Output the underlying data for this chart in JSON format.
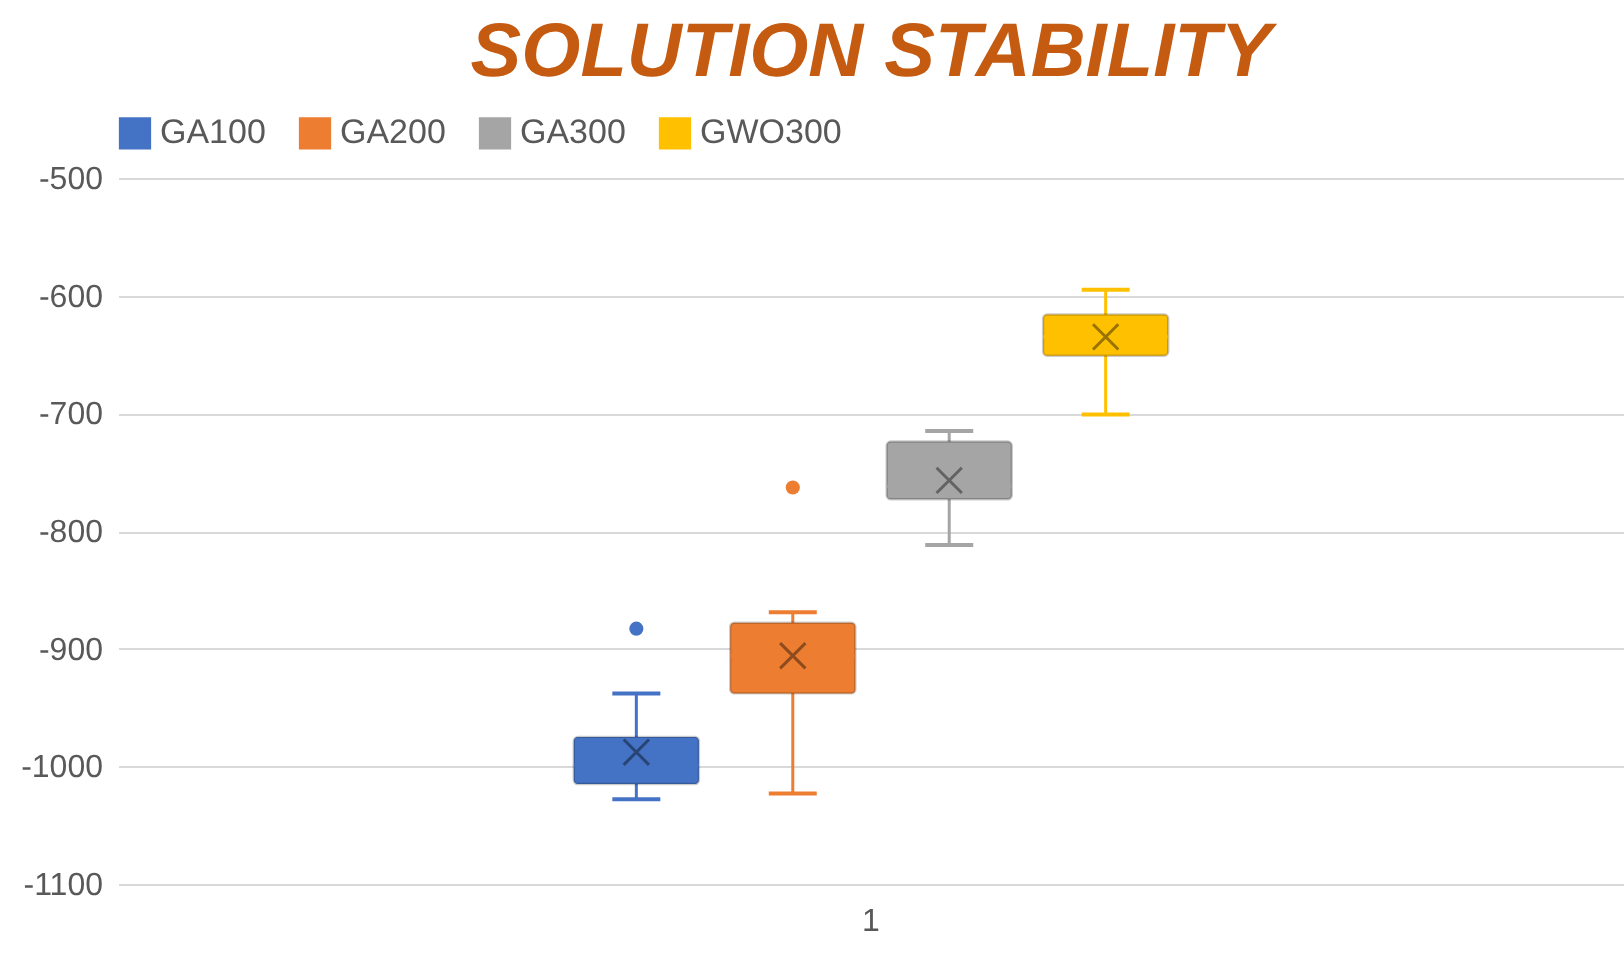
{
  "chart_data": {
    "type": "box",
    "title": "SOLUTION STABILITY",
    "categories": [
      "1"
    ],
    "series": [
      {
        "name": "GA100",
        "color": "#4472c4",
        "boxes": [
          {
            "low": -1028,
            "q1": -1015,
            "median": -999,
            "q3": -975,
            "high": -938,
            "mean": -988,
            "outliers": [
              -883
            ]
          }
        ]
      },
      {
        "name": "GA200",
        "color": "#ed7d31",
        "boxes": [
          {
            "low": -1023,
            "q1": -938,
            "median": -906,
            "q3": -878,
            "high": -869,
            "mean": -906,
            "outliers": [
              -763
            ]
          }
        ]
      },
      {
        "name": "GA300",
        "color": "#a5a5a5",
        "boxes": [
          {
            "low": -812,
            "q1": -773,
            "median": -762,
            "q3": -724,
            "high": -715,
            "mean": -757
          }
        ]
      },
      {
        "name": "GWO300",
        "color": "#ffc000",
        "boxes": [
          {
            "low": -701,
            "q1": -651,
            "median": -635,
            "q3": -616,
            "high": -595,
            "mean": -635
          }
        ]
      }
    ],
    "ylim": [
      -1100,
      -500
    ],
    "yticks": [
      -1100,
      -1000,
      -900,
      -800,
      -700,
      -600,
      -500
    ],
    "grid": "y",
    "legend": "top"
  }
}
